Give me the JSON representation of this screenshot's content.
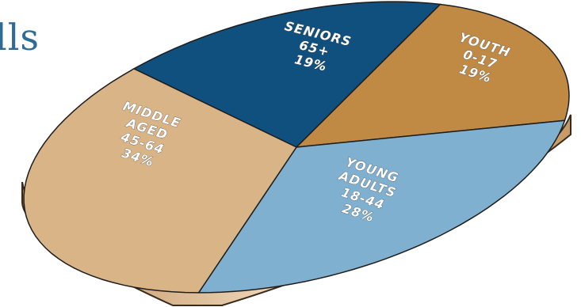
{
  "title_fragment": "lls",
  "chart_data": {
    "type": "pie",
    "slices": [
      {
        "label_lines": [
          "SENIORS",
          "65+",
          "19%"
        ],
        "value": 19,
        "color": "#10507f"
      },
      {
        "label_lines": [
          "YOUTH",
          "0-17",
          "19%"
        ],
        "value": 19,
        "color": "#c08a45"
      },
      {
        "label_lines": [
          "YOUNG",
          "ADULTS",
          "18-44",
          "28%"
        ],
        "value": 28,
        "color": "#7fb0cf"
      },
      {
        "label_lines": [
          "MIDDLE",
          "AGED",
          "45-64",
          "34%"
        ],
        "value": 34,
        "color": "#d8b487"
      }
    ]
  }
}
